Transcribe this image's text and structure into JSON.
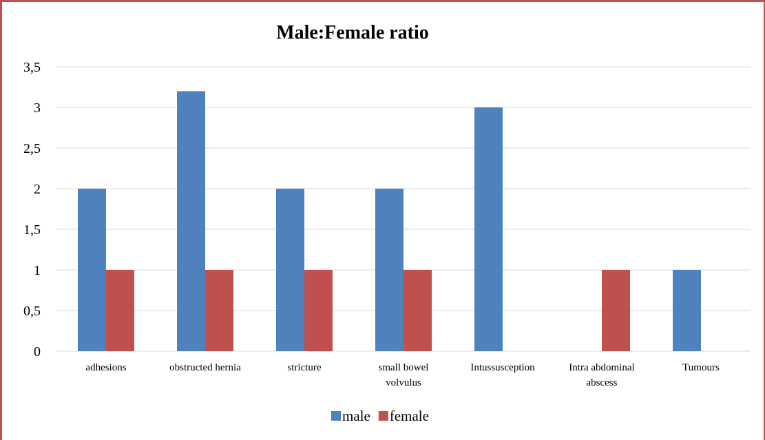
{
  "chart_data": {
    "type": "bar",
    "title": "Male:Female ratio",
    "xlabel": "",
    "ylabel": "",
    "categories": [
      [
        "adhesions"
      ],
      [
        "obstructed hernia"
      ],
      [
        "stricture"
      ],
      [
        "small bowel",
        "volvulus"
      ],
      [
        "Intussusception"
      ],
      [
        "Intra abdominal",
        "abscess"
      ],
      [
        "Tumours"
      ]
    ],
    "series": [
      {
        "name": "male",
        "color": "#4f81bd",
        "values": [
          2,
          3.2,
          2,
          2,
          3,
          0,
          1
        ]
      },
      {
        "name": "female",
        "color": "#c0504d",
        "values": [
          1,
          1,
          1,
          1,
          0,
          1,
          0
        ]
      }
    ],
    "yticks": [
      "0",
      "0,5",
      "1",
      "1,5",
      "2",
      "2,5",
      "3",
      "3,5"
    ],
    "ylim": [
      0,
      3.5
    ],
    "grid": true,
    "legend_position": "bottom"
  },
  "colors": {
    "frame": "#c0504d",
    "grid": "#d9d9d9"
  }
}
